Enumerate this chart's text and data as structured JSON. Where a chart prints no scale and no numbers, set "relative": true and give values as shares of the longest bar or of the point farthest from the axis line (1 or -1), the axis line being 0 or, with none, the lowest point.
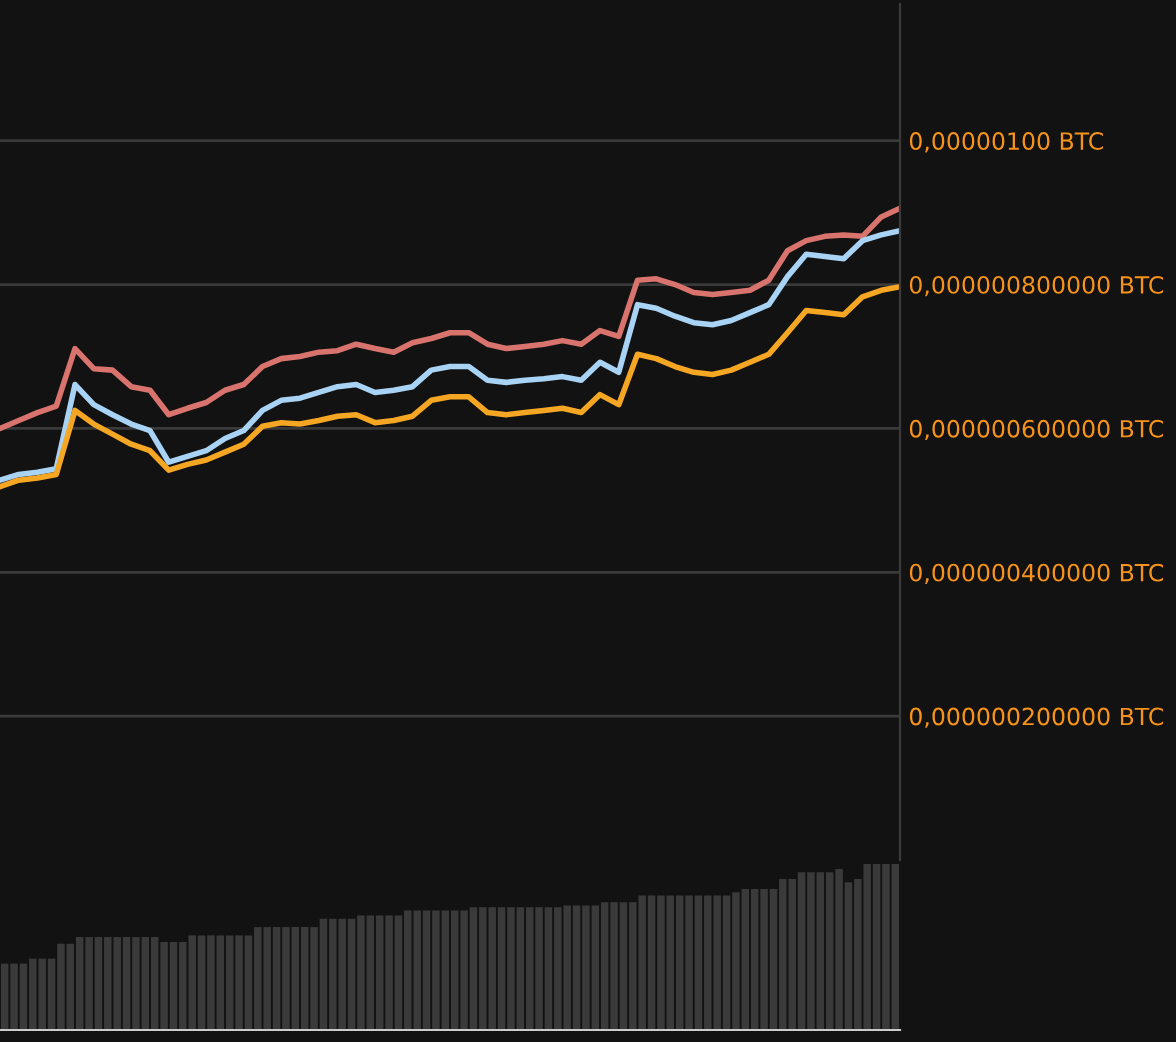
{
  "chart_data": [
    {
      "type": "line",
      "categories": [
        null,
        null,
        null,
        null,
        null,
        null,
        null,
        null,
        null,
        null,
        null,
        null,
        null,
        null,
        null,
        null,
        null,
        null,
        null,
        null,
        null,
        null,
        null,
        null,
        null,
        null,
        null,
        null,
        null,
        null,
        null,
        null,
        null,
        null,
        null,
        null,
        null,
        null,
        null,
        null,
        null,
        null,
        null,
        null,
        null,
        null,
        null,
        null,
        null
      ],
      "series": [
        {
          "color": "#d9736e",
          "values": [
            6e-07,
            6.11e-07,
            6.22e-07,
            6.31e-07,
            7.11e-07,
            6.83e-07,
            6.81e-07,
            6.58e-07,
            6.53e-07,
            6.19e-07,
            6.28e-07,
            6.36e-07,
            6.53e-07,
            6.61e-07,
            6.86e-07,
            6.97e-07,
            7e-07,
            7.06e-07,
            7.08e-07,
            7.17e-07,
            7.11e-07,
            7.06e-07,
            7.19e-07,
            7.25e-07,
            7.33e-07,
            7.33e-07,
            7.17e-07,
            7.11e-07,
            7.14e-07,
            7.17e-07,
            7.22e-07,
            7.17e-07,
            7.36e-07,
            7.28e-07,
            8.06e-07,
            8.08e-07,
            8e-07,
            7.89e-07,
            7.86e-07,
            7.89e-07,
            7.92e-07,
            8.06e-07,
            8.47e-07,
            8.61e-07,
            8.67e-07,
            8.69e-07,
            8.67e-07,
            8.94e-07,
            9.06e-07
          ]
        },
        {
          "color": "#a9d3f5",
          "values": [
            5.28e-07,
            5.36e-07,
            5.39e-07,
            5.44e-07,
            6.61e-07,
            6.33e-07,
            6.19e-07,
            6.06e-07,
            5.97e-07,
            5.53e-07,
            5.61e-07,
            5.69e-07,
            5.86e-07,
            5.97e-07,
            6.25e-07,
            6.39e-07,
            6.42e-07,
            6.5e-07,
            6.58e-07,
            6.61e-07,
            6.5e-07,
            6.53e-07,
            6.58e-07,
            6.81e-07,
            6.86e-07,
            6.86e-07,
            6.67e-07,
            6.64e-07,
            6.67e-07,
            6.69e-07,
            6.72e-07,
            6.67e-07,
            6.92e-07,
            6.78e-07,
            7.72e-07,
            7.67e-07,
            7.56e-07,
            7.47e-07,
            7.44e-07,
            7.5e-07,
            7.61e-07,
            7.72e-07,
            8.11e-07,
            8.42e-07,
            8.39e-07,
            8.36e-07,
            8.61e-07,
            8.69e-07,
            8.75e-07
          ]
        },
        {
          "color": "#f5a623",
          "values": [
            5.19e-07,
            5.28e-07,
            5.31e-07,
            5.36e-07,
            6.25e-07,
            6.06e-07,
            5.92e-07,
            5.78e-07,
            5.69e-07,
            5.42e-07,
            5.5e-07,
            5.56e-07,
            5.67e-07,
            5.78e-07,
            6.03e-07,
            6.08e-07,
            6.06e-07,
            6.11e-07,
            6.17e-07,
            6.19e-07,
            6.08e-07,
            6.11e-07,
            6.17e-07,
            6.39e-07,
            6.44e-07,
            6.44e-07,
            6.22e-07,
            6.19e-07,
            6.22e-07,
            6.25e-07,
            6.28e-07,
            6.22e-07,
            6.47e-07,
            6.33e-07,
            7.03e-07,
            6.97e-07,
            6.86e-07,
            6.78e-07,
            6.75e-07,
            6.81e-07,
            6.92e-07,
            7.03e-07,
            7.33e-07,
            7.64e-07,
            7.61e-07,
            7.58e-07,
            7.83e-07,
            7.92e-07,
            7.97e-07
          ]
        }
      ],
      "ylim": [
        0,
        1.19e-06
      ],
      "yticks": [
        {
          "value": 2e-07,
          "label": "0,000000200000 BTC"
        },
        {
          "value": 4e-07,
          "label": "0,000000400000 BTC"
        },
        {
          "value": 6e-07,
          "label": "0,000000600000 BTC"
        },
        {
          "value": 8e-07,
          "label": "0,000000800000 BTC"
        },
        {
          "value": 1e-06,
          "label": "0,00000100 BTC"
        }
      ],
      "grid": "y"
    },
    {
      "type": "bar",
      "relative": true,
      "color": "#3a3a3a",
      "categories": [
        null,
        null,
        null,
        null,
        null,
        null,
        null,
        null,
        null,
        null,
        null,
        null,
        null,
        null,
        null,
        null,
        null,
        null,
        null,
        null,
        null,
        null,
        null,
        null,
        null,
        null,
        null,
        null,
        null,
        null,
        null,
        null,
        null,
        null,
        null,
        null,
        null,
        null,
        null,
        null,
        null,
        null,
        null,
        null,
        null,
        null,
        null,
        null,
        null,
        null,
        null,
        null,
        null,
        null,
        null,
        null,
        null,
        null,
        null,
        null,
        null,
        null,
        null,
        null,
        null,
        null,
        null,
        null,
        null,
        null,
        null,
        null,
        null,
        null,
        null,
        null,
        null,
        null,
        null,
        null,
        null,
        null,
        null,
        null,
        null,
        null,
        null,
        null,
        null,
        null,
        null,
        null,
        null,
        null,
        null,
        null
      ],
      "values": [
        0.4,
        0.4,
        0.4,
        0.43,
        0.43,
        0.43,
        0.52,
        0.52,
        0.56,
        0.56,
        0.56,
        0.56,
        0.56,
        0.56,
        0.56,
        0.56,
        0.56,
        0.53,
        0.53,
        0.53,
        0.57,
        0.57,
        0.57,
        0.57,
        0.57,
        0.57,
        0.57,
        0.62,
        0.62,
        0.62,
        0.62,
        0.62,
        0.62,
        0.62,
        0.67,
        0.67,
        0.67,
        0.67,
        0.69,
        0.69,
        0.69,
        0.69,
        0.69,
        0.72,
        0.72,
        0.72,
        0.72,
        0.72,
        0.72,
        0.72,
        0.74,
        0.74,
        0.74,
        0.74,
        0.74,
        0.74,
        0.74,
        0.74,
        0.74,
        0.74,
        0.75,
        0.75,
        0.75,
        0.75,
        0.77,
        0.77,
        0.77,
        0.77,
        0.81,
        0.81,
        0.81,
        0.81,
        0.81,
        0.81,
        0.81,
        0.81,
        0.81,
        0.81,
        0.83,
        0.85,
        0.85,
        0.85,
        0.85,
        0.91,
        0.91,
        0.95,
        0.95,
        0.95,
        0.95,
        0.97,
        0.89,
        0.91,
        1.0,
        1.0,
        1.0,
        1.0
      ]
    }
  ]
}
